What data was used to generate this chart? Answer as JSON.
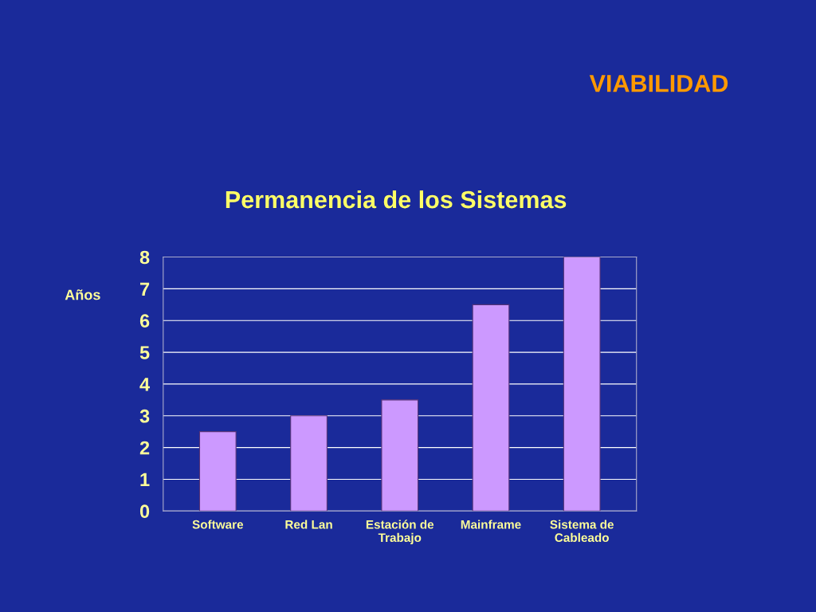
{
  "chart_data": {
    "type": "bar",
    "title": "VIABILIDAD",
    "subtitle": "Permanencia de los Sistemas",
    "ylabel": "Años",
    "categories": [
      "Software",
      "Red Lan",
      "Estación de\nTrabajo",
      "Mainframe",
      "Sistema de\nCableado"
    ],
    "values": [
      2.5,
      3,
      3.5,
      6.5,
      8
    ],
    "color": "#cc99ff",
    "ylim": [
      0,
      8
    ],
    "yticks": [
      0,
      1,
      2,
      3,
      4,
      5,
      6,
      7,
      8
    ],
    "grid": "y",
    "legend": false
  }
}
